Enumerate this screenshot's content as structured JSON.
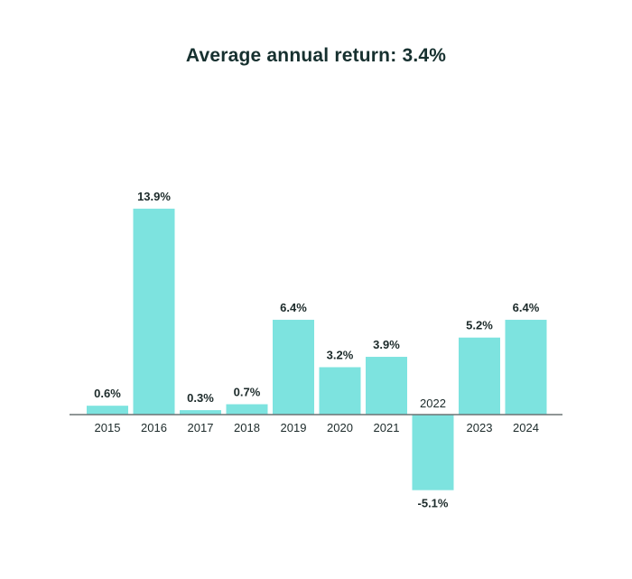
{
  "chart_data": {
    "type": "bar",
    "title": "Average annual return: 3.4%",
    "categories": [
      "2015",
      "2016",
      "2017",
      "2018",
      "2019",
      "2020",
      "2021",
      "2022",
      "2023",
      "2024"
    ],
    "values": [
      0.6,
      13.9,
      0.3,
      0.7,
      6.4,
      3.2,
      3.9,
      -5.1,
      5.2,
      6.4
    ],
    "data_labels": [
      "0.6%",
      "13.9%",
      "0.3%",
      "0.7%",
      "6.4%",
      "3.2%",
      "3.9%",
      "-5.1%",
      "5.2%",
      "6.4%"
    ],
    "unit": "%",
    "grid": false,
    "legend": "none",
    "bar_color": "#7de3df",
    "axis_color": "#6b7373",
    "text_color": "#1c2a2a"
  }
}
